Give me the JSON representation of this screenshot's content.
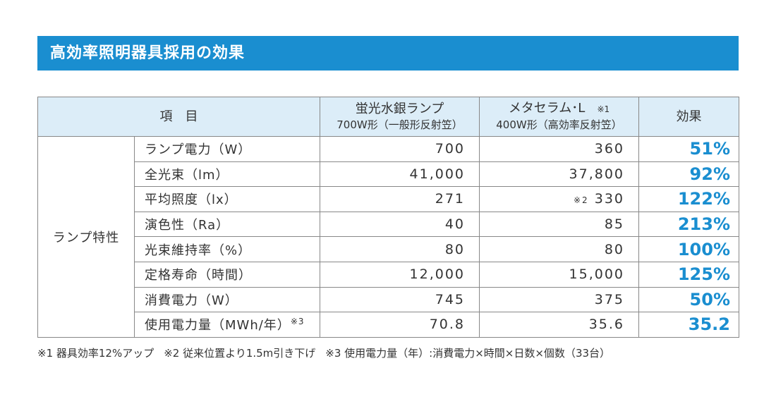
{
  "header": {
    "title": "高効率照明器具採用の効果"
  },
  "table": {
    "columns": [
      {
        "text": "項　目"
      },
      {
        "lines": [
          "蛍光水銀ランプ",
          "700W形（一般形反射笠）"
        ]
      },
      {
        "lines": [
          "メタセラム･L",
          "400W形（高効率反射笠）"
        ],
        "note": "※1"
      },
      {
        "text": "効果"
      }
    ],
    "group": "ランプ特性",
    "rows": [
      {
        "label": "ランプ電力（W）",
        "before": "700",
        "after": "360",
        "effect": "51%"
      },
      {
        "label": "全光束（lm）",
        "before": "41,000",
        "after": "37,800",
        "effect": "92%"
      },
      {
        "label": "平均照度（lx）",
        "before": "271",
        "after_note": "※2",
        "after": "330",
        "effect": "122%"
      },
      {
        "label": "演色性（Ra）",
        "before": "40",
        "after": "85",
        "effect": "213%"
      },
      {
        "label": "光束維持率（%）",
        "before": "80",
        "after": "80",
        "effect": "100%"
      },
      {
        "label": "定格寿命（時間）",
        "before": "12,000",
        "after": "15,000",
        "effect": "125%"
      },
      {
        "label": "消費電力（W）",
        "before": "745",
        "after": "375",
        "effect": "50%"
      },
      {
        "label": "使用電力量（MWh/年）",
        "label_note": "※3",
        "before": "70.8",
        "after": "35.6",
        "effect": "35.2"
      }
    ]
  },
  "footnotes": [
    "※1 器具効率12%アップ",
    "※2 従来位置より1.5m引き下げ",
    "※3 使用電力量（年）:消費電力×時間×日数×個数（33台）"
  ]
}
